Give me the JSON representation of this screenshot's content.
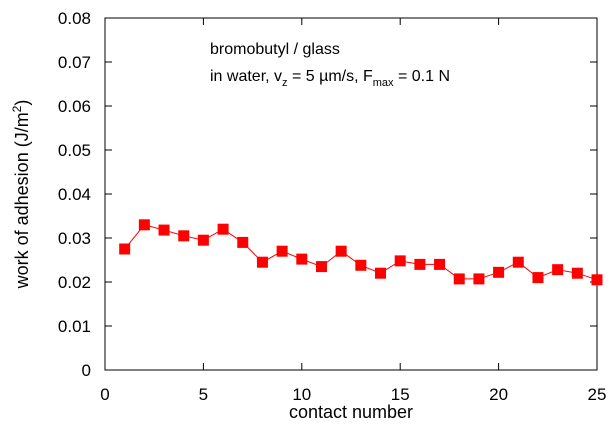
{
  "chart_data": {
    "type": "line",
    "annotation": {
      "line1": "bromobutyl / glass",
      "line2_prefix": "in water, v",
      "line2_sub1": "z",
      "line2_mid": " = 5 µm/s, F",
      "line2_sub2": "max",
      "line2_suffix": " = 0.1 N"
    },
    "xlabel": "contact number",
    "ylabel_main": "work of adhesion  (J/m",
    "ylabel_sup": "2",
    "ylabel_close": ")",
    "xlim": [
      0,
      25
    ],
    "ylim": [
      0,
      0.08
    ],
    "xticks": [
      0,
      5,
      10,
      15,
      20,
      25
    ],
    "xtick_labels": [
      "0",
      "5",
      "10",
      "15",
      "20",
      "25"
    ],
    "yticks": [
      0,
      0.01,
      0.02,
      0.03,
      0.04,
      0.05,
      0.06,
      0.07,
      0.08
    ],
    "ytick_labels": [
      "0",
      "0.01",
      "0.02",
      "0.03",
      "0.04",
      "0.05",
      "0.06",
      "0.07",
      "0.08"
    ],
    "grid": false,
    "series": [
      {
        "color": "#ff0000",
        "marker": "square",
        "x": [
          1,
          2,
          3,
          4,
          5,
          6,
          7,
          8,
          9,
          10,
          11,
          12,
          13,
          14,
          15,
          16,
          17,
          18,
          19,
          20,
          21,
          22,
          23,
          24,
          25
        ],
        "y": [
          0.0275,
          0.033,
          0.0318,
          0.0305,
          0.0295,
          0.032,
          0.029,
          0.0245,
          0.027,
          0.0252,
          0.0235,
          0.027,
          0.0238,
          0.022,
          0.0248,
          0.024,
          0.024,
          0.0207,
          0.0207,
          0.0222,
          0.0245,
          0.021,
          0.0228,
          0.022,
          0.0205
        ]
      }
    ]
  }
}
